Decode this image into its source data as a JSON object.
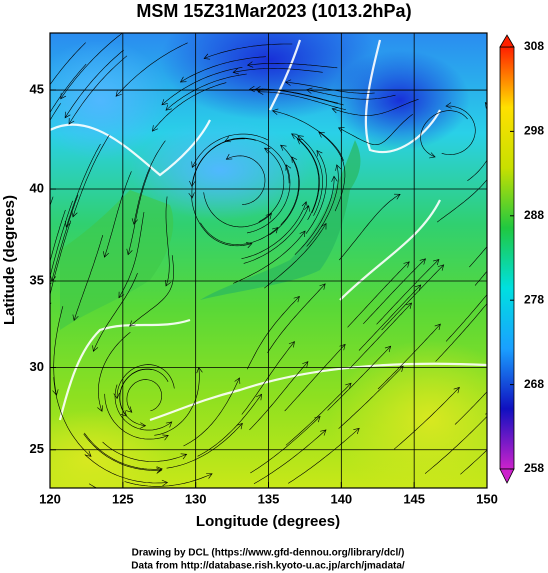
{
  "chart_data": {
    "type": "map",
    "projection": "mercator",
    "title": "MSM 15Z31Mar2023 (1013.2hPa)",
    "x_label": "Longitude (degrees)",
    "y_label": "Latitude  (degrees)",
    "xlim": [
      120,
      150
    ],
    "ylim": [
      22.6,
      47.7
    ],
    "xticks": [
      120,
      125,
      130,
      135,
      140,
      145,
      150
    ],
    "yticks": [
      25,
      30,
      35,
      40,
      45
    ],
    "grid": true,
    "colorbar": {
      "lim": [
        258,
        308
      ],
      "ticks": [
        258,
        268,
        278,
        288,
        298,
        308
      ],
      "colors": [
        "#cc22cc",
        "#1010c0",
        "#1aa0ff",
        "#00e0e0",
        "#20c840",
        "#c8e000",
        "#ffe000",
        "#ff2000"
      ]
    },
    "footer": [
      "Drawing by DCL (https://www.gfd-dennou.org/library/dcl/)",
      "Data from http://database.rish.kyoto-u.ac.jp/arch/jmadata/"
    ]
  }
}
